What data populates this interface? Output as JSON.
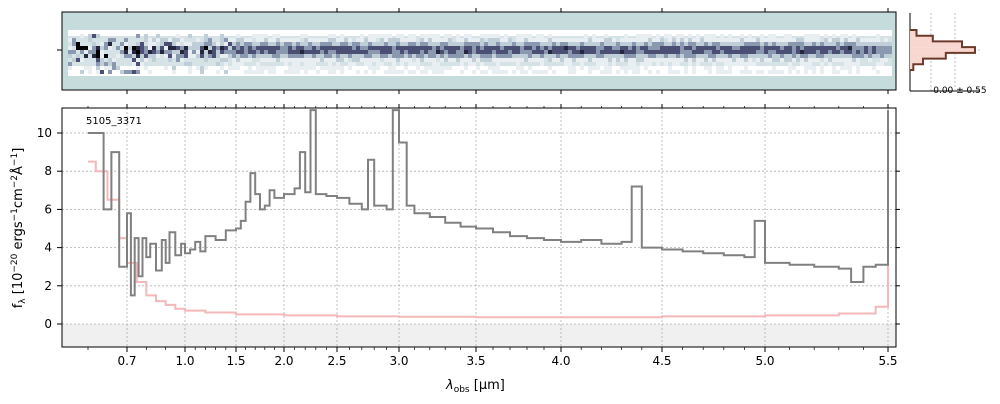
{
  "figure": {
    "object_label": "5105_3371",
    "xlabel_main": "λ",
    "xlabel_sub": "obs",
    "xlabel_unit": " [μm]",
    "ylabel": "f_λ [10^-20 ergs^-1cm^-2Å^-1]",
    "hist_label": "-0.00 ± 0.55",
    "colors": {
      "spectrum": "#808080",
      "error": "#f4b8b8",
      "hist_fill": "#f8d7d0",
      "hist_line": "#6b3a2a",
      "sky": "#c6dcdc",
      "grid": "#b0b0b0"
    }
  },
  "chart_data": [
    {
      "type": "image",
      "name": "2D spectrum",
      "description_axis": "same wavelength axis as 1D spectrum",
      "colormap": [
        "#ffffff",
        "#9bb3c0",
        "#3a3f63",
        "#000000"
      ]
    },
    {
      "type": "histogram",
      "name": "pixel distribution",
      "annotation": "-0.00 ± 0.55",
      "bins": [
        -0.3,
        -0.2,
        -0.1,
        0.0,
        0.1,
        0.2,
        0.3
      ],
      "counts": [
        0.1,
        0.35,
        0.8,
        1.0,
        0.55,
        0.2,
        0.05
      ]
    },
    {
      "type": "line",
      "subtype": "step",
      "title": "5105_3371",
      "x_tick_labels": [
        "0.7",
        "1.0",
        "1.5",
        "2.0",
        "2.5",
        "3.0",
        "3.5",
        "4.0",
        "4.5",
        "5.0",
        "5.5"
      ],
      "y_tick_labels": [
        "0",
        "2",
        "4",
        "6",
        "8",
        "10"
      ],
      "ylim": [
        -1.2,
        11.2
      ],
      "grid": true,
      "series": [
        {
          "role": "flux",
          "points": [
            [
              0.6,
              10
            ],
            [
              0.64,
              6
            ],
            [
              0.66,
              9
            ],
            [
              0.68,
              3
            ],
            [
              0.7,
              5.8
            ],
            [
              0.72,
              1.5
            ],
            [
              0.74,
              4.5
            ],
            [
              0.76,
              2.5
            ],
            [
              0.78,
              4.5
            ],
            [
              0.8,
              3.5
            ],
            [
              0.82,
              4.2
            ],
            [
              0.85,
              2.8
            ],
            [
              0.88,
              4.4
            ],
            [
              0.9,
              3.2
            ],
            [
              0.92,
              4.8
            ],
            [
              0.95,
              3.6
            ],
            [
              0.98,
              4.2
            ],
            [
              1.0,
              3.7
            ],
            [
              1.05,
              3.9
            ],
            [
              1.1,
              4.3
            ],
            [
              1.15,
              3.8
            ],
            [
              1.2,
              4.6
            ],
            [
              1.3,
              4.4
            ],
            [
              1.4,
              4.9
            ],
            [
              1.5,
              5.0
            ],
            [
              1.55,
              5.4
            ],
            [
              1.6,
              6.4
            ],
            [
              1.65,
              7.9
            ],
            [
              1.7,
              6.8
            ],
            [
              1.75,
              6.0
            ],
            [
              1.8,
              6.2
            ],
            [
              1.85,
              7.0
            ],
            [
              1.9,
              6.6
            ],
            [
              2.0,
              6.8
            ],
            [
              2.1,
              7.1
            ],
            [
              2.15,
              9.0
            ],
            [
              2.2,
              6.9
            ],
            [
              2.25,
              11.2
            ],
            [
              2.3,
              6.8
            ],
            [
              2.4,
              6.7
            ],
            [
              2.5,
              6.6
            ],
            [
              2.6,
              6.3
            ],
            [
              2.7,
              6.0
            ],
            [
              2.75,
              8.6
            ],
            [
              2.8,
              6.2
            ],
            [
              2.9,
              6.0
            ],
            [
              2.95,
              11.2
            ],
            [
              3.0,
              9.5
            ],
            [
              3.05,
              6.2
            ],
            [
              3.1,
              5.8
            ],
            [
              3.2,
              5.6
            ],
            [
              3.3,
              5.3
            ],
            [
              3.4,
              5.1
            ],
            [
              3.5,
              5.0
            ],
            [
              3.6,
              4.8
            ],
            [
              3.7,
              4.6
            ],
            [
              3.8,
              4.5
            ],
            [
              3.9,
              4.4
            ],
            [
              4.0,
              4.3
            ],
            [
              4.1,
              4.4
            ],
            [
              4.2,
              4.2
            ],
            [
              4.3,
              4.3
            ],
            [
              4.35,
              7.2
            ],
            [
              4.4,
              4.0
            ],
            [
              4.5,
              3.9
            ],
            [
              4.6,
              3.8
            ],
            [
              4.7,
              3.7
            ],
            [
              4.8,
              3.6
            ],
            [
              4.9,
              3.5
            ],
            [
              4.95,
              5.4
            ],
            [
              5.0,
              3.2
            ],
            [
              5.1,
              3.1
            ],
            [
              5.2,
              3.0
            ],
            [
              5.3,
              2.9
            ],
            [
              5.35,
              2.2
            ],
            [
              5.4,
              3.0
            ],
            [
              5.45,
              3.1
            ],
            [
              5.5,
              11.2
            ]
          ]
        },
        {
          "role": "error",
          "points": [
            [
              0.6,
              8.5
            ],
            [
              0.62,
              8
            ],
            [
              0.65,
              6.5
            ],
            [
              0.68,
              4.5
            ],
            [
              0.7,
              3.2
            ],
            [
              0.75,
              2.2
            ],
            [
              0.8,
              1.5
            ],
            [
              0.85,
              1.2
            ],
            [
              0.9,
              1.0
            ],
            [
              0.95,
              0.8
            ],
            [
              1.0,
              0.7
            ],
            [
              1.2,
              0.6
            ],
            [
              1.5,
              0.5
            ],
            [
              2.0,
              0.45
            ],
            [
              2.5,
              0.4
            ],
            [
              3.0,
              0.38
            ],
            [
              3.5,
              0.35
            ],
            [
              4.0,
              0.35
            ],
            [
              4.5,
              0.4
            ],
            [
              5.0,
              0.45
            ],
            [
              5.3,
              0.55
            ],
            [
              5.45,
              0.9
            ],
            [
              5.5,
              8.5
            ]
          ]
        }
      ]
    }
  ]
}
